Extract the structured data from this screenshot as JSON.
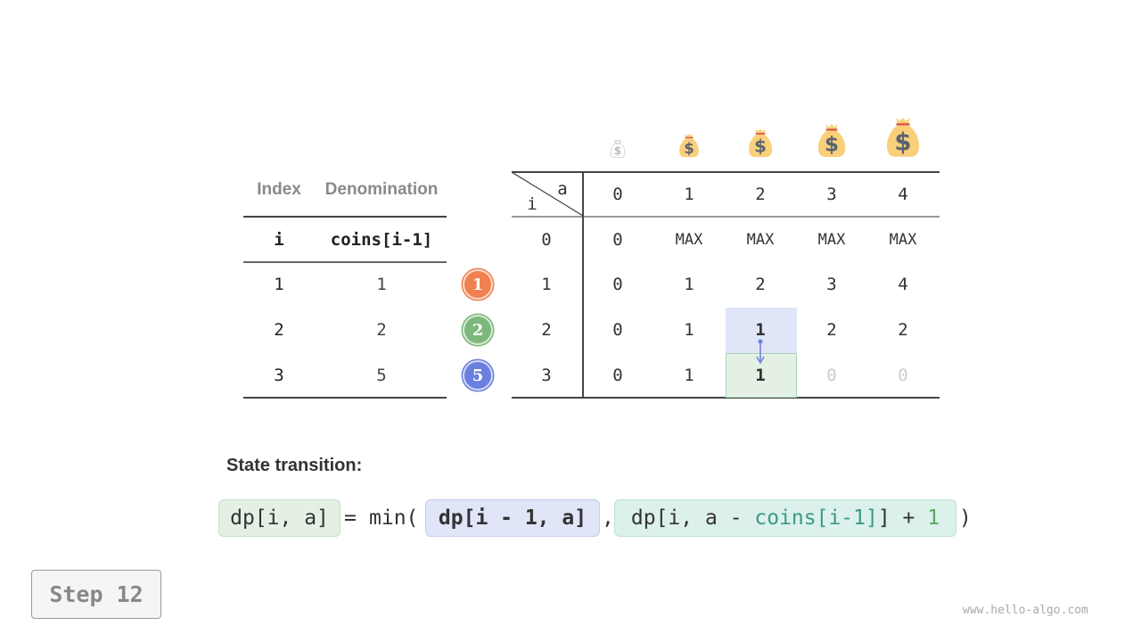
{
  "coins_table": {
    "headers": [
      "Index",
      "Denomination"
    ],
    "subheaders": [
      "i",
      "coins[i-1]"
    ],
    "rows": [
      [
        "1",
        "1"
      ],
      [
        "2",
        "2"
      ],
      [
        "3",
        "5"
      ]
    ]
  },
  "coin_badges": [
    {
      "label": "1",
      "color": "#f08050"
    },
    {
      "label": "2",
      "color": "#7cb87c"
    },
    {
      "label": "5",
      "color": "#6a7fe0"
    }
  ],
  "dp_table": {
    "corner_col": "a",
    "corner_row": "i",
    "col_headers": [
      "0",
      "1",
      "2",
      "3",
      "4"
    ],
    "row_headers": [
      "0",
      "1",
      "2",
      "3"
    ],
    "rows": [
      [
        "0",
        "MAX",
        "MAX",
        "MAX",
        "MAX"
      ],
      [
        "0",
        "1",
        "2",
        "3",
        "4"
      ],
      [
        "0",
        "1",
        "1",
        "2",
        "2"
      ],
      [
        "0",
        "1",
        "1",
        "0",
        "0"
      ]
    ],
    "highlight_source": {
      "row": 2,
      "col": 2,
      "color": "#e0e5f8"
    },
    "highlight_target": {
      "row": 3,
      "col": 2,
      "color": "#e4f0e4"
    },
    "faded_cells": [
      [
        3,
        3
      ],
      [
        3,
        4
      ]
    ]
  },
  "money_bag_icons": [
    "money-bag-icon",
    "money-bag-icon",
    "money-bag-icon",
    "money-bag-icon",
    "money-bag-icon"
  ],
  "section_title": "State transition:",
  "formula": {
    "lhs": "dp[i, a]",
    "eq": "=",
    "min": "min(",
    "term1": "dp[i - 1, a]",
    "comma": ",",
    "term2_a": "dp[i, a - ",
    "term2_coins": "coins[i-1]",
    "term2_b": "] + ",
    "term2_one": "1",
    "close": ")"
  },
  "step_label": "Step 12",
  "watermark": "www.hello-algo.com"
}
